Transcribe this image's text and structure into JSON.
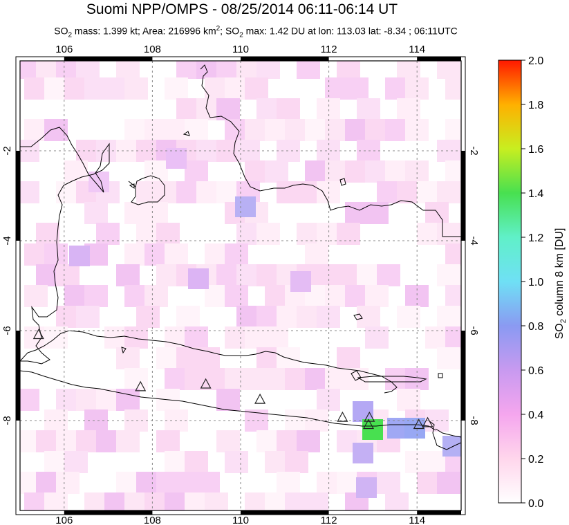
{
  "title": "Suomi NPP/OMPS - 08/25/2014 06:11-06:14 UT",
  "subtitle": {
    "so2_prefix": "SO",
    "mass_text": " mass: 1.399 kt; Area: 216996 km",
    "so2max_prefix": "; SO",
    "tail_text": " max: 1.42 DU at lon: 113.03 lat: -8.34 ; 06:11UTC"
  },
  "map": {
    "lon_range": [
      105,
      115
    ],
    "lat_range": [
      -10,
      0
    ],
    "lon_ticks": [
      "106",
      "108",
      "110",
      "112",
      "114"
    ],
    "lat_ticks": [
      "-2",
      "-4",
      "-6",
      "-8"
    ],
    "volcanoes": [
      {
        "lon": 105.42,
        "lat": -6.1
      },
      {
        "lon": 107.73,
        "lat": -7.26
      },
      {
        "lon": 109.21,
        "lat": -7.2
      },
      {
        "lon": 110.44,
        "lat": -7.54
      },
      {
        "lon": 112.31,
        "lat": -7.94
      },
      {
        "lon": 112.92,
        "lat": -7.94
      },
      {
        "lon": 112.9,
        "lat": -8.1
      },
      {
        "lon": 114.04,
        "lat": -8.1
      },
      {
        "lon": 114.24,
        "lat": -8.06
      }
    ]
  },
  "colorbar": {
    "ticks": [
      "0.0",
      "0.2",
      "0.4",
      "0.6",
      "0.8",
      "1.0",
      "1.2",
      "1.4",
      "1.6",
      "1.8",
      "2.0"
    ],
    "label_prefix": "SO",
    "label_suffix": " column 8 km [DU]",
    "colors": [
      "#ffffff",
      "#ffd6ec",
      "#f5a6ee",
      "#c89af0",
      "#8a9af2",
      "#6fe0f5",
      "#60f0c8",
      "#48e050",
      "#c8ee20",
      "#ffb000",
      "#ff1800"
    ]
  }
}
